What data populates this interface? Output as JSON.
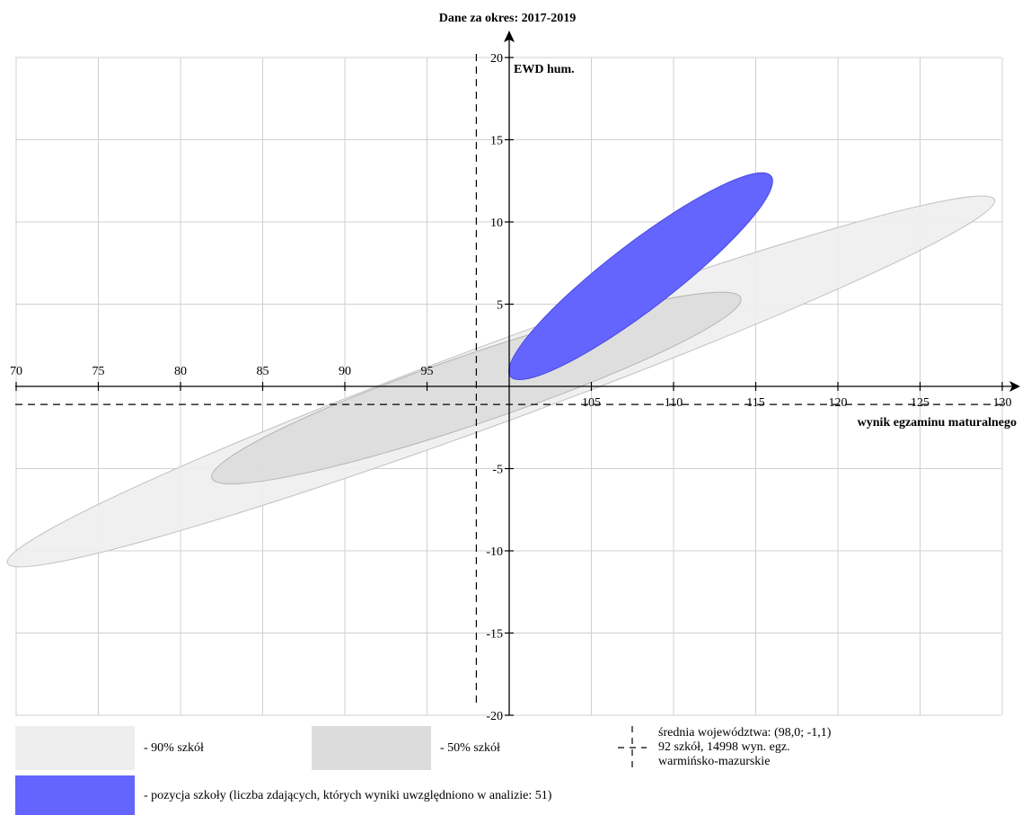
{
  "chart_data": {
    "type": "scatter",
    "title": "Dane za okres: 2017-2019",
    "xlabel": "wynik egzaminu maturalnego",
    "ylabel": "EWD hum.",
    "xlim": [
      70,
      130
    ],
    "ylim": [
      -20,
      20
    ],
    "x_ticks": [
      70,
      75,
      80,
      85,
      90,
      95,
      105,
      110,
      115,
      120,
      125,
      130
    ],
    "y_ticks": [
      -20,
      -15,
      -10,
      -5,
      5,
      10,
      15,
      20
    ],
    "grid": true,
    "mean_point": {
      "x": 98.0,
      "y": -1.1
    },
    "regions": [
      {
        "name": "90% szkół",
        "color": "#eeeeee",
        "stroke": "#c0c0c0",
        "center": [
          99.5,
          0.3
        ],
        "semi_axes": [
          32,
          2.4
        ],
        "angle_deg": 20.2
      },
      {
        "name": "50% szkół",
        "color": "#dcdcdc",
        "stroke": "#b4b4b4",
        "center": [
          98.0,
          -0.1
        ],
        "semi_axes": [
          17,
          2.1
        ],
        "angle_deg": 18.8
      },
      {
        "name": "pozycja szkoły",
        "color": "#6464ff",
        "stroke": "#4a4ae0",
        "center": [
          108.0,
          6.7
        ],
        "semi_axes": [
          10,
          2.0
        ],
        "angle_deg": 37.5
      }
    ]
  },
  "legend": {
    "p90_label": "- 90% szkół",
    "p50_label": "- 50% szkół",
    "mean_line1": "średnia województwa: (98,0; -1,1)",
    "mean_line2": "92 szkół, 14998 wyn. egz.",
    "mean_line3": "warmińsko-mazurskie",
    "school_label": "- pozycja szkoły (liczba zdających, których wyniki uwzględniono w analizie: 51)"
  },
  "colors": {
    "grid": "#d0d0d0",
    "axis": "#000000",
    "p90": "#eeeeee",
    "p50": "#dcdcdc",
    "school": "#6464ff"
  }
}
